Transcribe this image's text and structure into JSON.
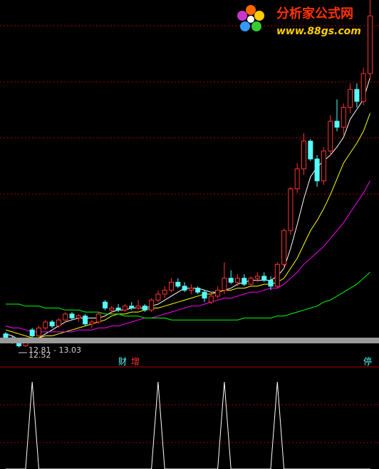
{
  "chart_data": {
    "type": "candlestick",
    "watermark": {
      "title": "分析家公式网",
      "url": "www.88gs.com"
    },
    "annotations": [
      "12.81 - 13.03",
      "12.52"
    ],
    "markers": [
      "财",
      "增",
      "停"
    ],
    "ylim": [
      12.4,
      30
    ],
    "up_color": "#ff3232",
    "down_color": "#54ffff",
    "open": [
      13.2,
      13.0,
      12.8,
      12.6,
      13.4,
      13.1,
      13.5,
      13.8,
      13.6,
      13.9,
      14.2,
      14.0,
      14.1,
      13.7,
      13.8,
      14.8,
      14.4,
      14.5,
      14.4,
      14.6,
      14.5,
      14.6,
      14.4,
      14.9,
      15.2,
      15.4,
      15.8,
      15.6,
      15.4,
      15.5,
      15.3,
      14.8,
      15.1,
      15.4,
      16.0,
      15.8,
      16.0,
      15.7,
      16.0,
      16.1,
      15.9,
      15.6,
      16.7,
      18.4,
      20.5,
      21.5,
      22.9,
      22.0,
      20.9,
      22.4,
      23.9,
      23.6,
      24.6,
      25.5,
      24.9,
      26.3
    ],
    "high": [
      13.3,
      13.1,
      12.9,
      12.9,
      13.5,
      13.6,
      13.9,
      13.9,
      14.0,
      14.3,
      14.3,
      14.2,
      14.2,
      13.9,
      14.3,
      14.9,
      14.6,
      14.7,
      14.7,
      14.8,
      14.9,
      14.7,
      15.0,
      15.4,
      15.6,
      16.0,
      16.0,
      15.8,
      15.7,
      15.6,
      15.4,
      15.3,
      15.6,
      16.8,
      16.4,
      16.2,
      16.2,
      16.1,
      16.3,
      16.3,
      16.1,
      16.8,
      18.5,
      20.6,
      21.8,
      23.3,
      23.0,
      22.2,
      22.6,
      24.2,
      25.0,
      24.8,
      25.8,
      25.8,
      26.6,
      30.0
    ],
    "low": [
      12.9,
      12.7,
      12.52,
      12.55,
      13.0,
      13.0,
      13.4,
      13.5,
      13.5,
      13.8,
      13.9,
      13.8,
      13.6,
      13.5,
      13.7,
      14.4,
      14.2,
      14.3,
      14.3,
      14.4,
      14.4,
      14.3,
      14.3,
      14.8,
      15.0,
      15.3,
      15.5,
      15.3,
      15.2,
      15.2,
      14.8,
      14.7,
      15.0,
      15.2,
      15.7,
      15.6,
      15.6,
      15.6,
      15.8,
      15.8,
      15.4,
      15.5,
      16.5,
      18.2,
      20.3,
      21.2,
      21.9,
      20.6,
      20.7,
      22.2,
      23.4,
      23.2,
      24.3,
      24.6,
      24.7,
      26.0
    ],
    "close": [
      13.0,
      12.8,
      12.6,
      12.8,
      13.1,
      13.5,
      13.8,
      13.6,
      13.9,
      14.2,
      14.0,
      14.1,
      13.7,
      13.8,
      14.2,
      14.5,
      14.5,
      14.4,
      14.6,
      14.5,
      14.6,
      14.4,
      14.9,
      15.2,
      15.4,
      15.8,
      15.6,
      15.4,
      15.5,
      15.3,
      15.0,
      15.1,
      15.4,
      16.0,
      15.8,
      16.0,
      15.7,
      16.0,
      16.1,
      15.9,
      15.6,
      16.7,
      18.4,
      20.5,
      21.5,
      22.9,
      22.0,
      20.9,
      22.4,
      23.9,
      23.6,
      24.6,
      25.5,
      24.9,
      26.3,
      29.2
    ],
    "series": [
      {
        "color": "#ffffff",
        "values": [
          13.2,
          13.1,
          12.9,
          12.8,
          12.9,
          13.0,
          13.2,
          13.4,
          13.6,
          13.8,
          13.9,
          14.0,
          14.0,
          14.0,
          14.0,
          14.1,
          14.3,
          14.4,
          14.4,
          14.5,
          14.5,
          14.5,
          14.6,
          14.7,
          14.9,
          15.1,
          15.3,
          15.5,
          15.5,
          15.5,
          15.4,
          15.3,
          15.3,
          15.4,
          15.5,
          15.7,
          15.8,
          15.9,
          15.9,
          15.9,
          15.9,
          16.1,
          16.5,
          17.5,
          18.7,
          20.0,
          21.1,
          21.6,
          21.9,
          22.2,
          22.6,
          23.1,
          24.0,
          24.5,
          25.0,
          26.1
        ]
      },
      {
        "color": "#ffff00",
        "values": [
          13.4,
          13.3,
          13.2,
          13.1,
          13.0,
          13.0,
          13.1,
          13.1,
          13.2,
          13.3,
          13.4,
          13.5,
          13.6,
          13.7,
          13.8,
          13.9,
          14.1,
          14.2,
          14.2,
          14.3,
          14.3,
          14.4,
          14.5,
          14.5,
          14.6,
          14.7,
          14.8,
          14.9,
          15.0,
          15.1,
          15.2,
          15.2,
          15.3,
          15.4,
          15.4,
          15.5,
          15.5,
          15.6,
          15.6,
          15.7,
          15.7,
          15.8,
          16.0,
          16.5,
          17.0,
          17.7,
          18.4,
          18.9,
          19.5,
          20.2,
          21.0,
          21.8,
          22.3,
          22.8,
          23.4,
          24.3
        ]
      },
      {
        "color": "#ff00ff",
        "values": [
          13.6,
          13.5,
          13.5,
          13.4,
          13.3,
          13.3,
          13.3,
          13.3,
          13.3,
          13.3,
          13.3,
          13.4,
          13.4,
          13.4,
          13.5,
          13.5,
          13.6,
          13.6,
          13.7,
          13.8,
          13.9,
          14.0,
          14.0,
          14.1,
          14.2,
          14.3,
          14.4,
          14.5,
          14.6,
          14.6,
          14.7,
          14.8,
          14.9,
          15.0,
          15.0,
          15.1,
          15.2,
          15.3,
          15.3,
          15.4,
          15.5,
          15.5,
          15.7,
          16.0,
          16.3,
          16.7,
          17.0,
          17.3,
          17.6,
          18.0,
          18.4,
          18.8,
          19.3,
          19.8,
          20.3,
          20.9
        ]
      },
      {
        "color": "#00ff00",
        "values": [
          14.7,
          14.7,
          14.7,
          14.6,
          14.6,
          14.6,
          14.5,
          14.5,
          14.5,
          14.4,
          14.4,
          14.4,
          14.3,
          14.3,
          14.3,
          14.2,
          14.2,
          14.2,
          14.1,
          14.1,
          14.1,
          14.0,
          14.0,
          14.0,
          14.0,
          13.9,
          13.9,
          13.9,
          13.9,
          13.9,
          13.9,
          13.9,
          13.9,
          13.9,
          13.9,
          13.9,
          14.0,
          14.0,
          14.0,
          14.0,
          14.0,
          14.1,
          14.1,
          14.2,
          14.3,
          14.4,
          14.5,
          14.6,
          14.8,
          14.9,
          15.1,
          15.3,
          15.5,
          15.7,
          16.0,
          16.3
        ]
      }
    ],
    "signal": {
      "color": "#ffffff",
      "ylim": [
        0,
        1
      ],
      "values": [
        0,
        0,
        0,
        0,
        1,
        0,
        0,
        0,
        0,
        0,
        0,
        0,
        0,
        0,
        0,
        0,
        0,
        0,
        0,
        0,
        0,
        0,
        0,
        1,
        0,
        0,
        0,
        0,
        0,
        0,
        0,
        0,
        0,
        1,
        0,
        0,
        0,
        0,
        0,
        0,
        0,
        1,
        0,
        0,
        0,
        0,
        0,
        0,
        0,
        0,
        0,
        0,
        0,
        0,
        0,
        0
      ]
    }
  }
}
